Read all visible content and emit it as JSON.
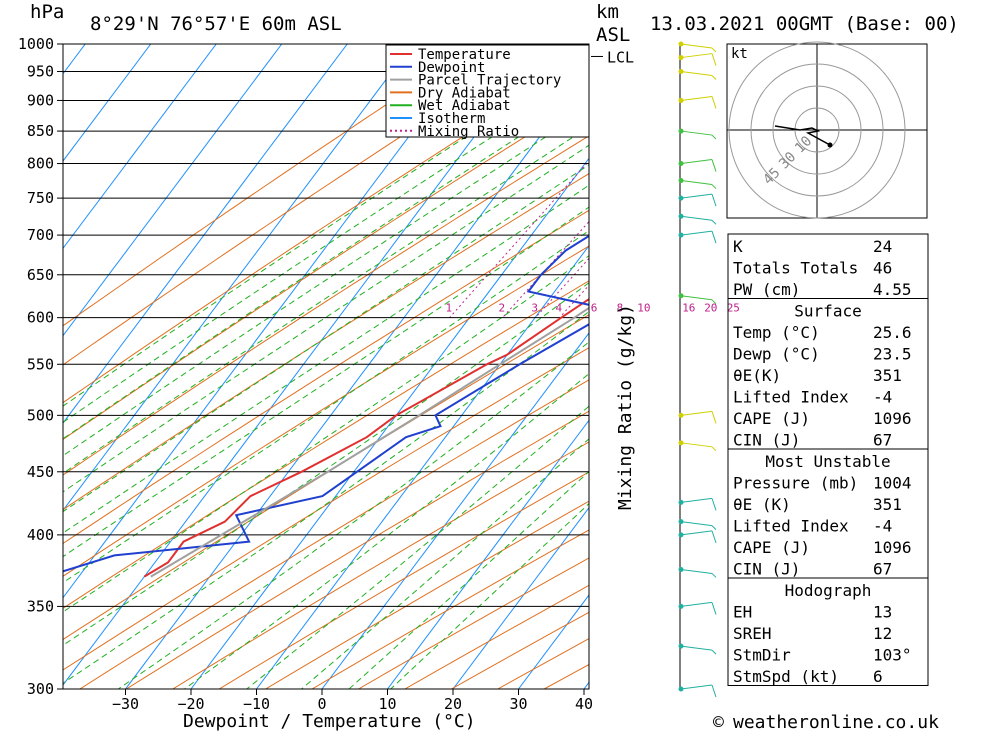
{
  "header": {
    "unit_left": "hPa",
    "location": "8°29'N  76°57'E  60m  ASL",
    "unit_km": "km",
    "unit_asl": "ASL",
    "datetime": "13.03.2021  00GMT  (Base: 00)"
  },
  "chart_data": {
    "type": "skew-t",
    "xlabel": "Dewpoint / Temperature (°C)",
    "ylabel_right": "Mixing Ratio (g/kg)",
    "pressure_ticks": [
      300,
      350,
      400,
      450,
      500,
      550,
      600,
      650,
      700,
      750,
      800,
      850,
      900,
      950,
      1000
    ],
    "temperature_ticks": [
      -30,
      -20,
      -10,
      0,
      10,
      20,
      30,
      40
    ],
    "xlim": [
      -40,
      40
    ],
    "plim": [
      1000,
      300
    ],
    "mixing_ratio_labels": [
      "1",
      "2",
      "3",
      "4",
      "6",
      "8",
      "10",
      "16",
      "20",
      "25"
    ],
    "lcl_label": "LCL",
    "lcl_pressure": 977,
    "legend": [
      "Temperature",
      "Dewpoint",
      "Parcel Trajectory",
      "Dry Adiabat",
      "Wet Adiabat",
      "Isotherm",
      "Mixing Ratio"
    ],
    "series": [
      {
        "name": "Temperature",
        "color": "#e03030",
        "points": [
          [
            1000,
            26.5
          ],
          [
            975,
            27
          ],
          [
            950,
            25
          ],
          [
            925,
            24
          ],
          [
            900,
            21
          ],
          [
            875,
            18
          ],
          [
            850,
            16
          ],
          [
            825,
            12
          ],
          [
            800,
            9
          ],
          [
            780,
            8
          ],
          [
            765,
            10
          ],
          [
            750,
            12
          ],
          [
            720,
            9
          ],
          [
            700,
            7
          ],
          [
            650,
            0
          ],
          [
            620,
            -4
          ],
          [
            600,
            -6
          ],
          [
            560,
            -10
          ],
          [
            550,
            -12
          ],
          [
            500,
            -20
          ],
          [
            480,
            -22
          ],
          [
            450,
            -28
          ],
          [
            430,
            -33
          ],
          [
            410,
            -34
          ],
          [
            395,
            -38
          ],
          [
            380,
            -38
          ],
          [
            370,
            -40
          ]
        ]
      },
      {
        "name": "Dewpoint",
        "color": "#2040d0",
        "points": [
          [
            1000,
            24
          ],
          [
            975,
            23
          ],
          [
            950,
            21
          ],
          [
            925,
            19
          ],
          [
            900,
            17
          ],
          [
            850,
            15
          ],
          [
            800,
            11
          ],
          [
            770,
            8
          ],
          [
            750,
            -7
          ],
          [
            720,
            -10
          ],
          [
            700,
            -11
          ],
          [
            680,
            -13
          ],
          [
            650,
            -14
          ],
          [
            630,
            -14
          ],
          [
            610,
            0
          ],
          [
            600,
            0
          ],
          [
            550,
            -7
          ],
          [
            500,
            -14
          ],
          [
            490,
            -12
          ],
          [
            480,
            -16
          ],
          [
            430,
            -22
          ],
          [
            415,
            -33
          ],
          [
            395,
            -28
          ],
          [
            385,
            -47
          ],
          [
            370,
            -55
          ],
          [
            340,
            -56
          ],
          [
            320,
            -58
          ],
          [
            305,
            -59
          ],
          [
            300,
            -59
          ]
        ]
      },
      {
        "name": "Parcel Trajectory",
        "color": "#a0a0a0",
        "points": [
          [
            1000,
            24.5
          ],
          [
            977,
            23
          ],
          [
            950,
            22.5
          ],
          [
            900,
            19.5
          ],
          [
            850,
            16.5
          ],
          [
            800,
            13
          ],
          [
            750,
            9.5
          ],
          [
            700,
            5.5
          ],
          [
            650,
            1
          ],
          [
            600,
            -4
          ],
          [
            550,
            -10
          ],
          [
            500,
            -16.5
          ],
          [
            450,
            -24
          ],
          [
            400,
            -33
          ],
          [
            370,
            -39
          ]
        ]
      }
    ],
    "wind_barb_pressures": [
      1000,
      975,
      950,
      900,
      850,
      800,
      775,
      750,
      725,
      700,
      625,
      500,
      475,
      425,
      410,
      400,
      375,
      350,
      325,
      300
    ],
    "hodograph": {
      "unit": "kt",
      "ring_labels": [
        "10",
        "30",
        "45"
      ]
    },
    "indices": {
      "basic": [
        {
          "label": "K",
          "value": "24"
        },
        {
          "label": "Totals Totals",
          "value": "46"
        },
        {
          "label": "PW (cm)",
          "value": "4.55"
        }
      ],
      "surface": {
        "title": "Surface",
        "rows": [
          {
            "label": "Temp (°C)",
            "value": "25.6"
          },
          {
            "label": "Dewp (°C)",
            "value": "23.5"
          },
          {
            "label": "θE(K)",
            "value": "351"
          },
          {
            "label": "Lifted Index",
            "value": "-4"
          },
          {
            "label": "CAPE (J)",
            "value": "1096"
          },
          {
            "label": "CIN (J)",
            "value": "67"
          }
        ]
      },
      "most_unstable": {
        "title": "Most Unstable",
        "rows": [
          {
            "label": "Pressure (mb)",
            "value": "1004"
          },
          {
            "label": "θE (K)",
            "value": "351"
          },
          {
            "label": "Lifted Index",
            "value": "-4"
          },
          {
            "label": "CAPE (J)",
            "value": "1096"
          },
          {
            "label": "CIN (J)",
            "value": "67"
          }
        ]
      },
      "hodograph_box": {
        "title": "Hodograph",
        "rows": [
          {
            "label": "EH",
            "value": "13"
          },
          {
            "label": "SREH",
            "value": "12"
          },
          {
            "label": "StmDir",
            "value": "103°"
          },
          {
            "label": "StmSpd (kt)",
            "value": "6"
          }
        ]
      }
    }
  },
  "footer": {
    "copyright_symbol": "©",
    "site": "weatheronline.co.uk"
  }
}
